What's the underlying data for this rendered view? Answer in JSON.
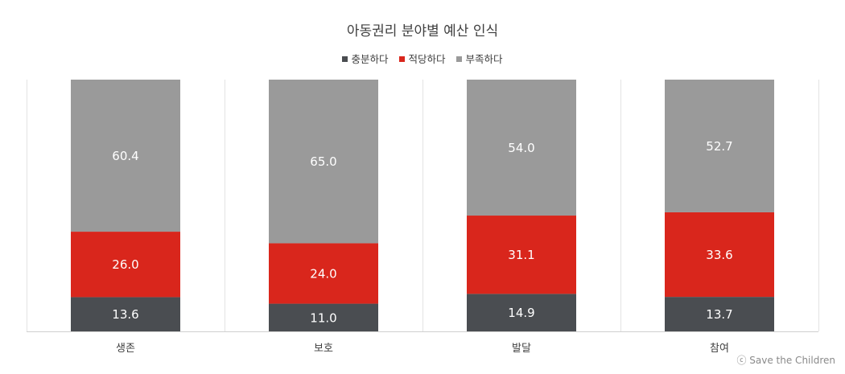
{
  "chart_data": {
    "type": "bar",
    "stacked": true,
    "percent": true,
    "title": "아동권리 분야별 예산 인식",
    "categories": [
      "생존",
      "보호",
      "발달",
      "참여"
    ],
    "series": [
      {
        "name": "충분하다",
        "color": "#4a4d51",
        "values": [
          13.6,
          11.0,
          14.9,
          13.7
        ],
        "labels": [
          "13.6",
          "11.0",
          "14.9",
          "13.7"
        ]
      },
      {
        "name": "적당하다",
        "color": "#d9261c",
        "values": [
          26.0,
          24.0,
          31.1,
          33.6
        ],
        "labels": [
          "26.0",
          "24.0",
          "31.1",
          "33.6"
        ]
      },
      {
        "name": "부족하다",
        "color": "#9a9a9a",
        "values": [
          60.4,
          65.0,
          54.0,
          52.7
        ],
        "labels": [
          "60.4",
          "65.0",
          "54.0",
          "52.7"
        ]
      }
    ],
    "ylim": [
      0,
      100
    ],
    "legend_position": "top",
    "grid": false
  },
  "credit": "ⓒ Save the Children"
}
